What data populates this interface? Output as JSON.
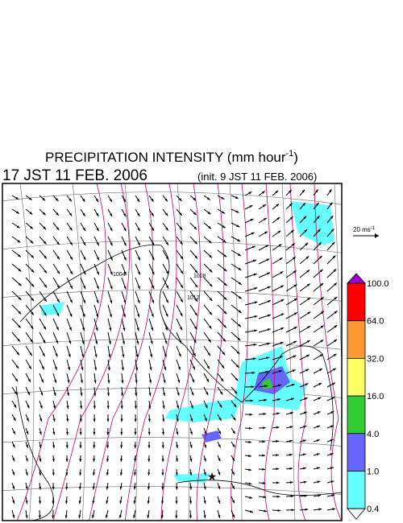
{
  "title": {
    "text": "PRECIPITATION INTENSITY (mm hour",
    "superscript": "-1",
    "close": ")"
  },
  "valid_time": "17 JST 11 FEB. 2006",
  "init_time": "(init. 9 JST 11 FEB. 2006)",
  "wind_scale": {
    "text": "20 ms",
    "superscript": "-1"
  },
  "contour_labels": [
    "1004",
    "1008",
    "1012"
  ],
  "colorbar": {
    "levels": [
      {
        "label": "100.0",
        "color": "#ff0000"
      },
      {
        "label": "64.0",
        "color": "#ff9933"
      },
      {
        "label": "32.0",
        "color": "#ffff66"
      },
      {
        "label": "16.0",
        "color": "#33cc33"
      },
      {
        "label": "4.0",
        "color": "#6666ff"
      },
      {
        "label": "1.0",
        "color": "#66ffff"
      },
      {
        "label": "0.4",
        "color": "#ffffff"
      }
    ],
    "over_color": "#9900cc"
  }
}
